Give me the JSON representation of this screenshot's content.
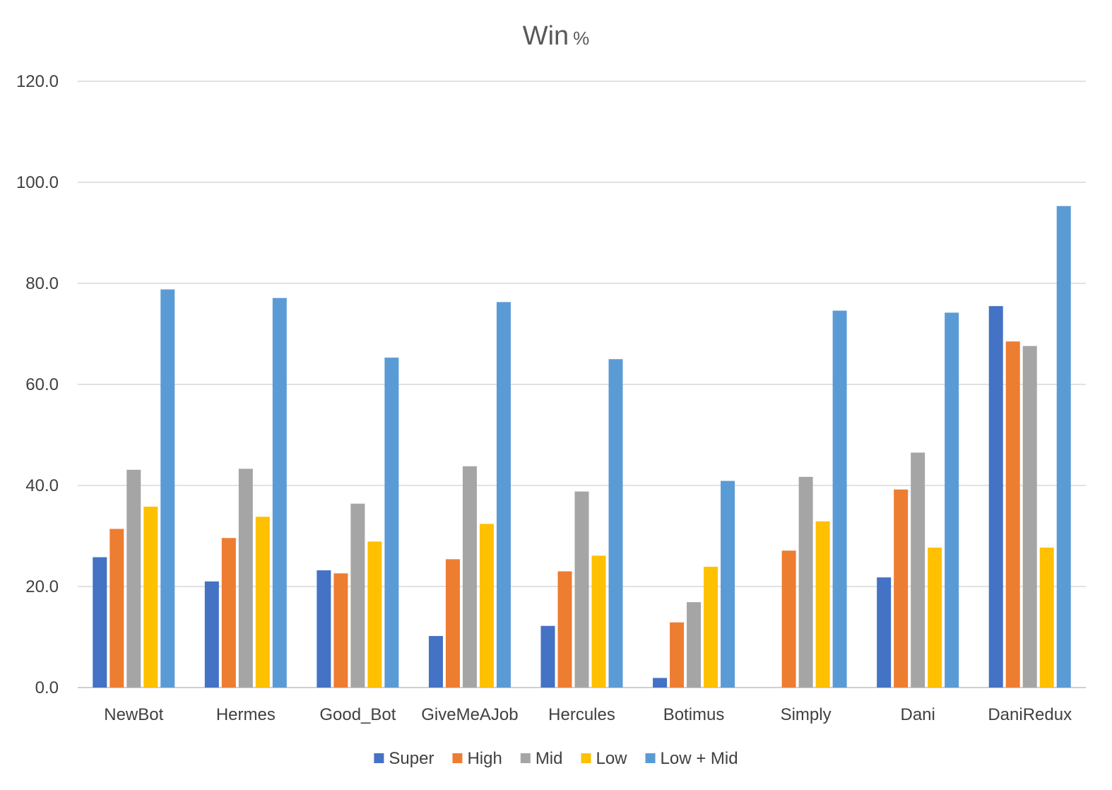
{
  "chart_data": {
    "type": "bar",
    "title": "Win",
    "title_suffix": "%",
    "categories": [
      "NewBot",
      "Hermes",
      "Good_Bot",
      "GiveMeAJob",
      "Hercules",
      "Botimus",
      "Simply",
      "Dani",
      "DaniRedux"
    ],
    "series": [
      {
        "name": "Super",
        "color": "#4472c4",
        "values": [
          25.8,
          21.0,
          23.2,
          10.2,
          12.2,
          1.9,
          0,
          21.8,
          75.5
        ]
      },
      {
        "name": "High",
        "color": "#ed7d31",
        "values": [
          31.4,
          29.6,
          22.6,
          25.4,
          23.0,
          12.9,
          27.1,
          39.2,
          68.5
        ]
      },
      {
        "name": "Mid",
        "color": "#a5a5a5",
        "values": [
          43.1,
          43.3,
          36.4,
          43.8,
          38.8,
          16.9,
          41.7,
          46.5,
          67.6
        ]
      },
      {
        "name": "Low",
        "color": "#ffc000",
        "values": [
          35.8,
          33.8,
          28.9,
          32.4,
          26.1,
          23.9,
          32.9,
          27.7,
          27.7
        ]
      },
      {
        "name": "Low + Mid",
        "color": "#5b9bd5",
        "values": [
          78.8,
          77.1,
          65.3,
          76.3,
          65.0,
          40.9,
          74.6,
          74.2,
          95.3
        ]
      }
    ],
    "y_ticks": [
      "0.0",
      "20.0",
      "40.0",
      "60.0",
      "80.0",
      "100.0",
      "120.0"
    ],
    "ylim": [
      0,
      120
    ],
    "grid": true,
    "legend_position": "bottom"
  }
}
